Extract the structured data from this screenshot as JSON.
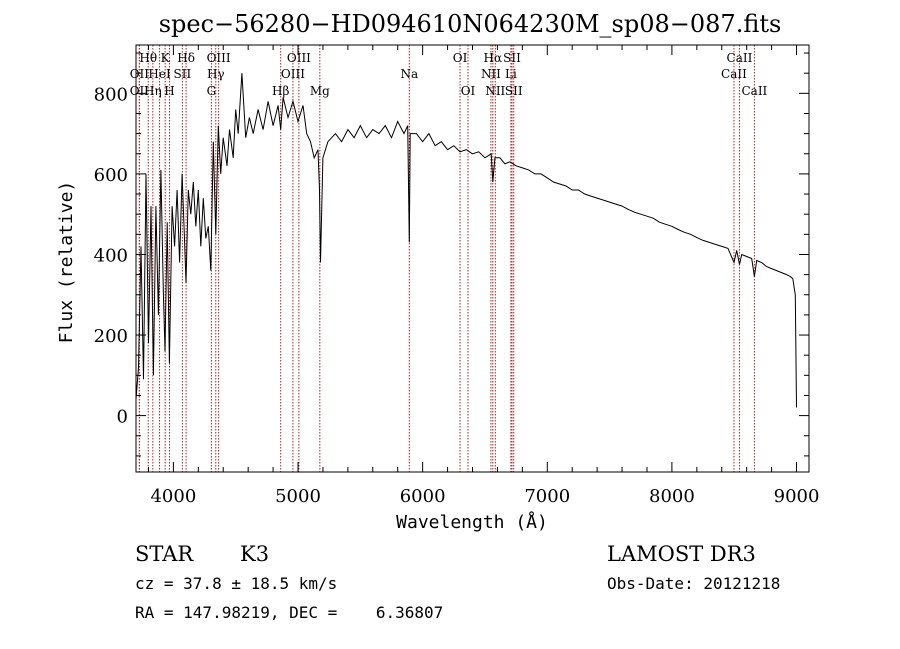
{
  "chart_data": {
    "type": "line",
    "title": "spec−56280−HD094610N064230M_sp08−087.fits",
    "xlabel": "Wavelength (Å)",
    "ylabel": "Flux (relative)",
    "xlim": [
      3700,
      9100
    ],
    "ylim": [
      -140,
      920
    ],
    "x_ticks": [
      {
        "value": 4000,
        "label": "4000"
      },
      {
        "value": 5000,
        "label": "5000"
      },
      {
        "value": 6000,
        "label": "6000"
      },
      {
        "value": 7000,
        "label": "7000"
      },
      {
        "value": 8000,
        "label": "8000"
      },
      {
        "value": 9000,
        "label": "9000"
      }
    ],
    "y_ticks": [
      {
        "value": 0,
        "label": "0"
      },
      {
        "value": 200,
        "label": "200"
      },
      {
        "value": 400,
        "label": "400"
      },
      {
        "value": 600,
        "label": "600"
      },
      {
        "value": 800,
        "label": "800"
      }
    ],
    "series": [
      {
        "name": "flux",
        "color": "#000000",
        "points": [
          [
            3700,
            40
          ],
          [
            3720,
            120
          ],
          [
            3740,
            420
          ],
          [
            3760,
            90
          ],
          [
            3780,
            600
          ],
          [
            3800,
            180
          ],
          [
            3820,
            520
          ],
          [
            3840,
            100
          ],
          [
            3860,
            520
          ],
          [
            3880,
            250
          ],
          [
            3900,
            610
          ],
          [
            3920,
            300
          ],
          [
            3933,
            160
          ],
          [
            3950,
            480
          ],
          [
            3968,
            130
          ],
          [
            3990,
            520
          ],
          [
            4010,
            420
          ],
          [
            4030,
            560
          ],
          [
            4050,
            380
          ],
          [
            4070,
            600
          ],
          [
            4090,
            430
          ],
          [
            4101,
            330
          ],
          [
            4120,
            560
          ],
          [
            4140,
            500
          ],
          [
            4160,
            580
          ],
          [
            4180,
            470
          ],
          [
            4200,
            560
          ],
          [
            4220,
            420
          ],
          [
            4240,
            540
          ],
          [
            4260,
            440
          ],
          [
            4280,
            470
          ],
          [
            4300,
            360
          ],
          [
            4320,
            680
          ],
          [
            4340,
            450
          ],
          [
            4360,
            720
          ],
          [
            4380,
            600
          ],
          [
            4400,
            690
          ],
          [
            4430,
            620
          ],
          [
            4450,
            710
          ],
          [
            4480,
            640
          ],
          [
            4500,
            760
          ],
          [
            4520,
            700
          ],
          [
            4550,
            850
          ],
          [
            4580,
            690
          ],
          [
            4610,
            740
          ],
          [
            4640,
            700
          ],
          [
            4680,
            760
          ],
          [
            4720,
            710
          ],
          [
            4760,
            780
          ],
          [
            4800,
            720
          ],
          [
            4840,
            770
          ],
          [
            4861,
            710
          ],
          [
            4880,
            790
          ],
          [
            4920,
            740
          ],
          [
            4960,
            780
          ],
          [
            5000,
            730
          ],
          [
            5040,
            770
          ],
          [
            5070,
            700
          ],
          [
            5100,
            680
          ],
          [
            5130,
            640
          ],
          [
            5160,
            660
          ],
          [
            5172,
            560
          ],
          [
            5180,
            380
          ],
          [
            5200,
            640
          ],
          [
            5240,
            680
          ],
          [
            5300,
            700
          ],
          [
            5350,
            680
          ],
          [
            5400,
            710
          ],
          [
            5450,
            690
          ],
          [
            5500,
            720
          ],
          [
            5550,
            690
          ],
          [
            5600,
            710
          ],
          [
            5650,
            700
          ],
          [
            5700,
            720
          ],
          [
            5750,
            690
          ],
          [
            5800,
            730
          ],
          [
            5850,
            700
          ],
          [
            5880,
            720
          ],
          [
            5893,
            430
          ],
          [
            5900,
            700
          ],
          [
            5950,
            700
          ],
          [
            6000,
            680
          ],
          [
            6050,
            700
          ],
          [
            6100,
            670
          ],
          [
            6150,
            680
          ],
          [
            6200,
            660
          ],
          [
            6250,
            670
          ],
          [
            6300,
            655
          ],
          [
            6350,
            660
          ],
          [
            6400,
            650
          ],
          [
            6450,
            655
          ],
          [
            6500,
            640
          ],
          [
            6550,
            650
          ],
          [
            6563,
            580
          ],
          [
            6580,
            640
          ],
          [
            6620,
            640
          ],
          [
            6660,
            625
          ],
          [
            6700,
            630
          ],
          [
            6750,
            620
          ],
          [
            6800,
            615
          ],
          [
            6850,
            610
          ],
          [
            6900,
            600
          ],
          [
            6950,
            600
          ],
          [
            7000,
            590
          ],
          [
            7050,
            580
          ],
          [
            7100,
            575
          ],
          [
            7150,
            570
          ],
          [
            7200,
            560
          ],
          [
            7250,
            560
          ],
          [
            7300,
            550
          ],
          [
            7350,
            545
          ],
          [
            7400,
            540
          ],
          [
            7450,
            535
          ],
          [
            7500,
            530
          ],
          [
            7550,
            525
          ],
          [
            7600,
            520
          ],
          [
            7650,
            512
          ],
          [
            7700,
            505
          ],
          [
            7750,
            500
          ],
          [
            7800,
            495
          ],
          [
            7850,
            490
          ],
          [
            7900,
            480
          ],
          [
            7950,
            475
          ],
          [
            8000,
            470
          ],
          [
            8050,
            462
          ],
          [
            8100,
            455
          ],
          [
            8150,
            450
          ],
          [
            8200,
            442
          ],
          [
            8250,
            435
          ],
          [
            8300,
            430
          ],
          [
            8350,
            425
          ],
          [
            8400,
            420
          ],
          [
            8450,
            415
          ],
          [
            8498,
            380
          ],
          [
            8520,
            410
          ],
          [
            8542,
            375
          ],
          [
            8560,
            400
          ],
          [
            8600,
            395
          ],
          [
            8640,
            390
          ],
          [
            8662,
            345
          ],
          [
            8680,
            385
          ],
          [
            8720,
            380
          ],
          [
            8760,
            370
          ],
          [
            8800,
            365
          ],
          [
            8840,
            360
          ],
          [
            8880,
            355
          ],
          [
            8920,
            350
          ],
          [
            8950,
            345
          ],
          [
            8970,
            340
          ],
          [
            8990,
            300
          ],
          [
            9000,
            20
          ]
        ]
      }
    ],
    "lines": [
      {
        "label": "Hθ",
        "wavelength": 3798,
        "label_row": 1
      },
      {
        "label": "OII",
        "wavelength": 3727,
        "label_row": 2
      },
      {
        "label": "OII",
        "wavelength": 3727,
        "label_row": 3
      },
      {
        "label": "Hη",
        "wavelength": 3835,
        "label_row": 3
      },
      {
        "label": "K",
        "wavelength": 3934,
        "label_row": 1
      },
      {
        "label": "HeI",
        "wavelength": 3889,
        "label_row": 2
      },
      {
        "label": "H",
        "wavelength": 3969,
        "label_row": 3
      },
      {
        "label": "Hδ",
        "wavelength": 4102,
        "label_row": 1
      },
      {
        "label": "SII",
        "wavelength": 4072,
        "label_row": 2
      },
      {
        "label": "OIII",
        "wavelength": 4363,
        "label_row": 1
      },
      {
        "label": "Hγ",
        "wavelength": 4340,
        "label_row": 2
      },
      {
        "label": "G",
        "wavelength": 4305,
        "label_row": 3
      },
      {
        "label": "Hβ",
        "wavelength": 4861,
        "label_row": 3
      },
      {
        "label": "OIII",
        "wavelength": 5007,
        "label_row": 1
      },
      {
        "label": "OIII",
        "wavelength": 4959,
        "label_row": 2
      },
      {
        "label": "Mg",
        "wavelength": 5175,
        "label_row": 3
      },
      {
        "label": "Na",
        "wavelength": 5893,
        "label_row": 2
      },
      {
        "label": "OI",
        "wavelength": 6300,
        "label_row": 1
      },
      {
        "label": "OI",
        "wavelength": 6364,
        "label_row": 3
      },
      {
        "label": "Hα",
        "wavelength": 6563,
        "label_row": 1
      },
      {
        "label": "NII",
        "wavelength": 6548,
        "label_row": 2
      },
      {
        "label": "NII",
        "wavelength": 6583,
        "label_row": 3
      },
      {
        "label": "SII",
        "wavelength": 6717,
        "label_row": 1
      },
      {
        "label": "Li",
        "wavelength": 6708,
        "label_row": 2
      },
      {
        "label": "SII",
        "wavelength": 6731,
        "label_row": 3
      },
      {
        "label": "CaII",
        "wavelength": 8542,
        "label_row": 1
      },
      {
        "label": "CaII",
        "wavelength": 8498,
        "label_row": 2
      },
      {
        "label": "CaII",
        "wavelength": 8662,
        "label_row": 3
      }
    ],
    "line_color": "#b22222",
    "annotations": {
      "class_label": "STAR",
      "subclass_label": "K3",
      "survey_label": "LAMOST DR3",
      "cz_text": "cz = 37.8 ± 18.5 km/s",
      "obs_date_text": "Obs-Date: 20121218",
      "coords_text": "RA = 147.98219, DEC =    6.36807"
    }
  }
}
